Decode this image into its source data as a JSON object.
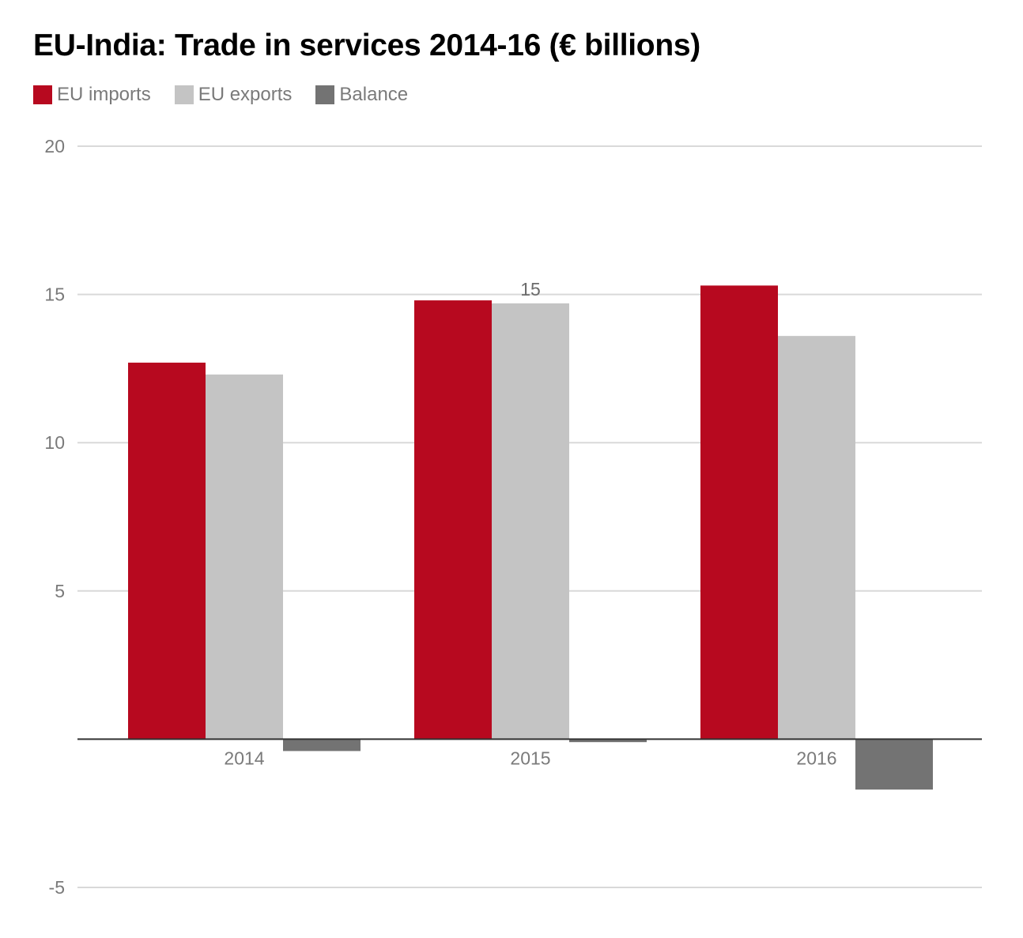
{
  "colors": {
    "eu_imports": "#b7091f",
    "eu_exports": "#c4c4c4",
    "balance": "#737373",
    "gridline": "#d9d9d9",
    "baseline": "#333333"
  },
  "chart_data": {
    "type": "bar",
    "title": "EU-India: Trade in services 2014-16 (€ billions)",
    "categories": [
      "2014",
      "2015",
      "2016"
    ],
    "series": [
      {
        "name": "EU imports",
        "color": "#b7091f",
        "values": [
          12.7,
          14.8,
          15.3
        ]
      },
      {
        "name": "EU exports",
        "color": "#c4c4c4",
        "values": [
          12.3,
          14.7,
          13.6
        ]
      },
      {
        "name": "Balance",
        "color": "#737373",
        "values": [
          -0.4,
          -0.1,
          -1.7
        ]
      }
    ],
    "data_labels": [
      {
        "series": 1,
        "category": 1,
        "text": "15"
      }
    ],
    "ylim": [
      -5,
      20
    ],
    "yticks": [
      -5,
      5,
      10,
      15,
      20
    ],
    "ytick_labels": [
      "-5",
      "5",
      "10",
      "15",
      "20"
    ],
    "grid": true,
    "legend_position": "top-left"
  }
}
